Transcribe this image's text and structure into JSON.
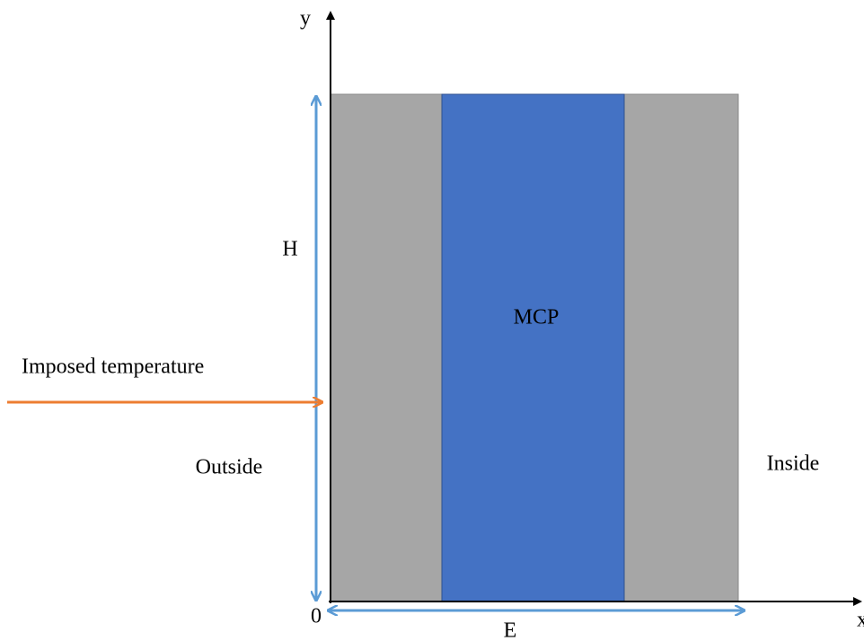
{
  "axes": {
    "y_label": "y",
    "x_label": "x",
    "origin": "0"
  },
  "dimensions": {
    "height": "H",
    "width": "E"
  },
  "regions": {
    "middle": "MCP",
    "left_side": "Outside",
    "right_side": "Inside"
  },
  "boundary": {
    "label": "Imposed temperature"
  }
}
